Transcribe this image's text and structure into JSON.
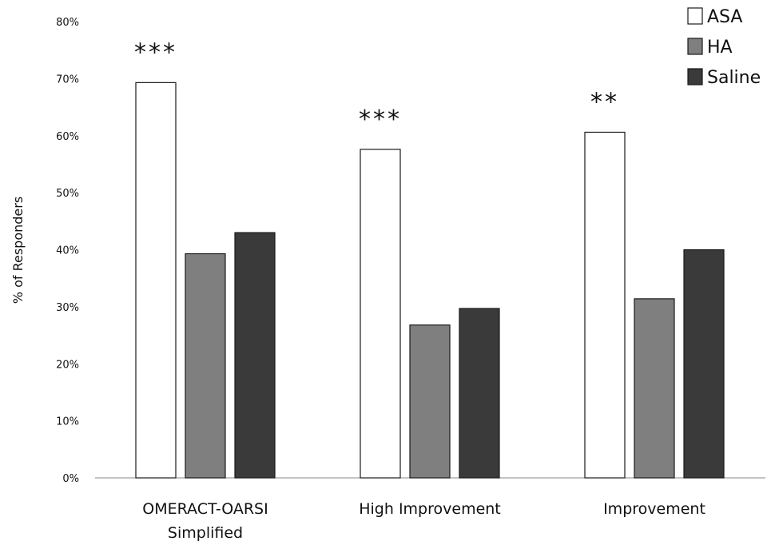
{
  "chart_data": {
    "type": "bar",
    "title": "",
    "xlabel": "",
    "ylabel": "% of Responders",
    "ylim": [
      0,
      80
    ],
    "yticks": [
      "0%",
      "10%",
      "20%",
      "30%",
      "40%",
      "50%",
      "60%",
      "70%",
      "80%"
    ],
    "grid": false,
    "legend_position": "top-right",
    "categories": [
      [
        "OMERACT-OARSI",
        "Simplified"
      ],
      [
        "High Improvement"
      ],
      [
        "Improvement"
      ]
    ],
    "series": [
      {
        "name": "ASA",
        "values": [
          69.3,
          57.6,
          60.6
        ],
        "color": "#ffffff"
      },
      {
        "name": "HA",
        "values": [
          39.3,
          26.8,
          31.4
        ],
        "color": "#7f7f7f"
      },
      {
        "name": "Saline",
        "values": [
          43.0,
          29.7,
          40.0
        ],
        "color": "#3a3a3a"
      }
    ],
    "annotations": [
      "***",
      "***",
      "**"
    ]
  }
}
